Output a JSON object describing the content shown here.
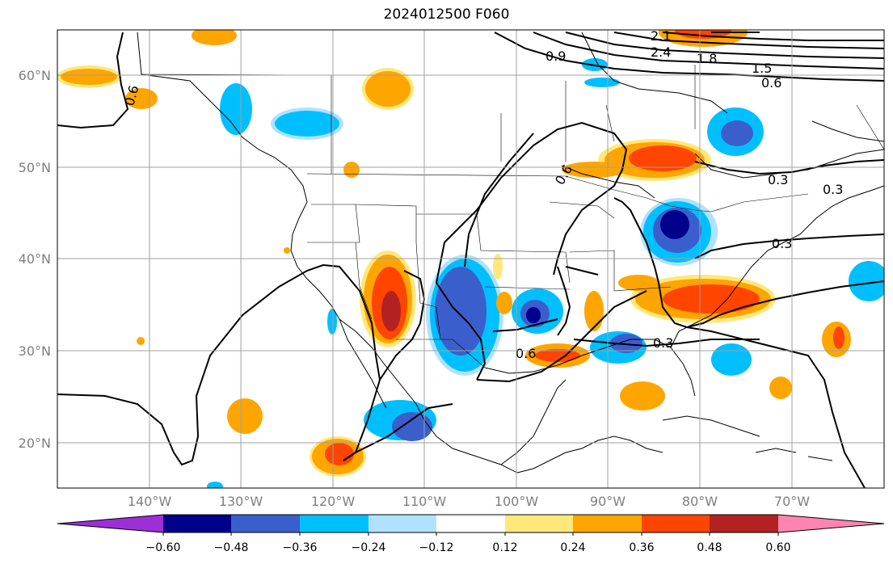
{
  "title": "2024012500 F060",
  "lat_labels": [
    "60°N",
    "50°N",
    "40°N",
    "30°N",
    "20°N"
  ],
  "lon_labels": [
    "140°W",
    "130°W",
    "120°W",
    "110°W",
    "100°W",
    "90°W",
    "80°W",
    "70°W"
  ],
  "contour_labels": [
    "0.6",
    "0.9",
    "2.1",
    "2.4",
    "1.8",
    "1.5",
    "0.6",
    "0.6",
    "0.3",
    "0.3",
    "0.6",
    "0.3",
    "0.3"
  ],
  "colorbar": {
    "ticks": [
      "−0.60",
      "−0.48",
      "−0.36",
      "−0.24",
      "−0.12",
      "0.12",
      "0.24",
      "0.36",
      "0.48",
      "0.60"
    ],
    "colors": [
      "#9b30d6",
      "#00008b",
      "#3a5fcd",
      "#00bfff",
      "#b0e2ff",
      "#ffffff",
      "#ffe87a",
      "#ffa500",
      "#ff4500",
      "#b22222",
      "#ff85b0"
    ]
  },
  "colors": {
    "neg_extreme": "#00008b",
    "neg_strong": "#3a5fcd",
    "neg_mid": "#00bfff",
    "neg_weak": "#b0e2ff",
    "pos_weak": "#ffe87a",
    "pos_mid": "#ffa500",
    "pos_strong": "#ff4500",
    "pos_extreme": "#b22222"
  }
}
